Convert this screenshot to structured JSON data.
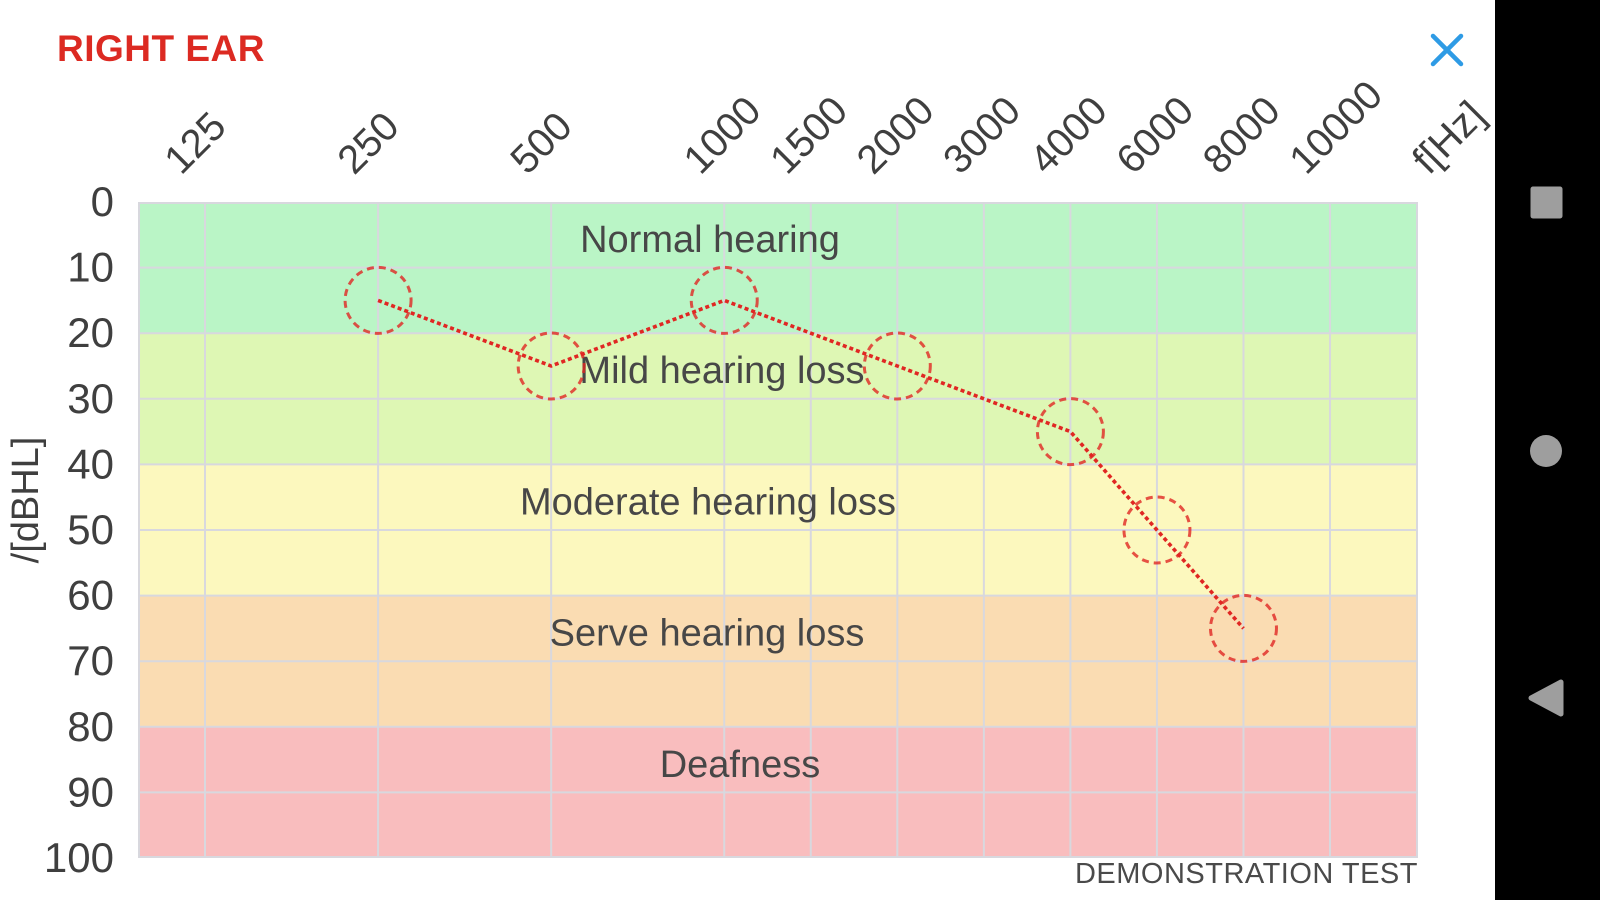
{
  "header": {
    "title": "RIGHT EAR",
    "title_color": "#dc2a22",
    "close_icon_color": "#2e9be5"
  },
  "footer": {
    "note": "DEMONSTRATION TEST"
  },
  "nav_bar": {
    "background": "#000000",
    "icon_color": "#9e9e9e",
    "icons": [
      "recents-square",
      "home-circle",
      "back-triangle"
    ]
  },
  "chart_data": {
    "type": "line",
    "title": "",
    "x_axis": {
      "label": "f[Hz]",
      "ticks": [
        125,
        250,
        500,
        1000,
        1500,
        2000,
        3000,
        4000,
        6000,
        8000,
        10000
      ]
    },
    "y_axis": {
      "label": "/[dBHL]",
      "ticks": [
        0,
        10,
        20,
        30,
        40,
        50,
        60,
        70,
        80,
        90,
        100
      ],
      "min": 0,
      "max": 100,
      "inverted": true
    },
    "grid": true,
    "legend": "none",
    "zones": [
      {
        "label": "Normal hearing",
        "from": 0,
        "to": 20,
        "color": "#baf5c6"
      },
      {
        "label": "Mild hearing loss",
        "from": 20,
        "to": 40,
        "color": "#def7b4"
      },
      {
        "label": "Moderate hearing loss",
        "from": 40,
        "to": 60,
        "color": "#fcf8be"
      },
      {
        "label": "Serve hearing loss",
        "from": 60,
        "to": 80,
        "color": "#fadcb2"
      },
      {
        "label": "Deafness",
        "from": 80,
        "to": 100,
        "color": "#f9bdbe"
      }
    ],
    "series": [
      {
        "name": "right-ear-threshold",
        "color": "#e02723",
        "points": [
          {
            "f": 250,
            "db": 15
          },
          {
            "f": 500,
            "db": 25
          },
          {
            "f": 1000,
            "db": 15
          },
          {
            "f": 2000,
            "db": 25
          },
          {
            "f": 4000,
            "db": 35
          },
          {
            "f": 6000,
            "db": 50
          },
          {
            "f": 8000,
            "db": 65
          }
        ]
      }
    ]
  }
}
